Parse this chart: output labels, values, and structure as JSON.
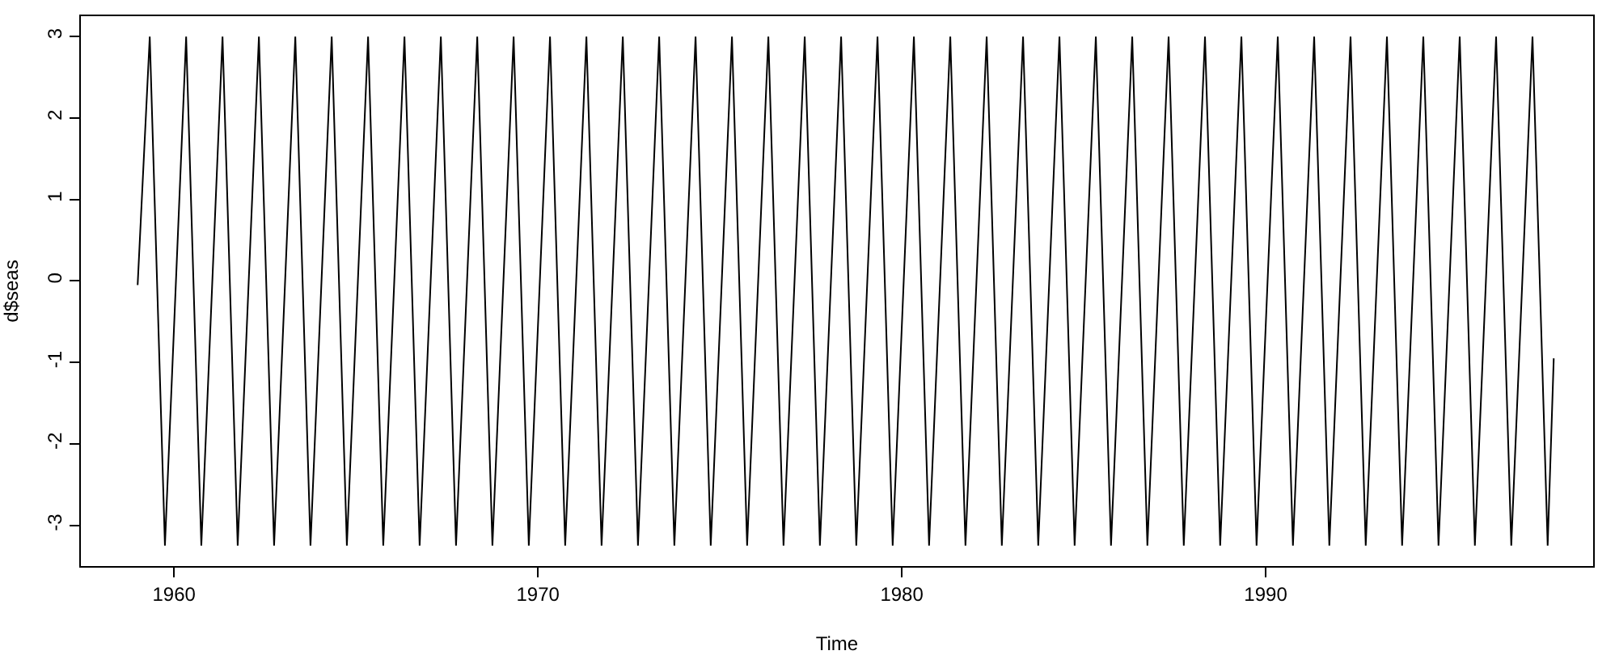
{
  "chart_data": {
    "type": "line",
    "xlabel": "Time",
    "ylabel": "d$seas",
    "x": [
      1959,
      1959.333,
      1959.75,
      1960.333,
      1960.75,
      1961.333,
      1961.75,
      1962.333,
      1962.75,
      1963.333,
      1963.75,
      1964.333,
      1964.75,
      1965.333,
      1965.75,
      1966.333,
      1966.75,
      1967.333,
      1967.75,
      1968.333,
      1968.75,
      1969.333,
      1969.75,
      1970.333,
      1970.75,
      1971.333,
      1971.75,
      1972.333,
      1972.75,
      1973.333,
      1973.75,
      1974.333,
      1974.75,
      1975.333,
      1975.75,
      1976.333,
      1976.75,
      1977.333,
      1977.75,
      1978.333,
      1978.75,
      1979.333,
      1979.75,
      1980.333,
      1980.75,
      1981.333,
      1981.75,
      1982.333,
      1982.75,
      1983.333,
      1983.75,
      1984.333,
      1984.75,
      1985.333,
      1985.75,
      1986.333,
      1986.75,
      1987.333,
      1987.75,
      1988.333,
      1988.75,
      1989.333,
      1989.75,
      1990.333,
      1990.75,
      1991.333,
      1991.75,
      1992.333,
      1992.75,
      1993.333,
      1993.75,
      1994.333,
      1994.75,
      1995.333,
      1995.75,
      1996.333,
      1996.75,
      1997.333,
      1997.75,
      1997.917
    ],
    "series": [
      {
        "color": "#000000",
        "values": [
          -0.05,
          3,
          -3.25,
          3,
          -3.25,
          3,
          -3.25,
          3,
          -3.25,
          3,
          -3.25,
          3,
          -3.25,
          3,
          -3.25,
          3,
          -3.25,
          3,
          -3.25,
          3,
          -3.25,
          3,
          -3.25,
          3,
          -3.25,
          3,
          -3.25,
          3,
          -3.25,
          3,
          -3.25,
          3,
          -3.25,
          3,
          -3.25,
          3,
          -3.25,
          3,
          -3.25,
          3,
          -3.25,
          3,
          -3.25,
          3,
          -3.25,
          3,
          -3.25,
          3,
          -3.25,
          3,
          -3.25,
          3,
          -3.25,
          3,
          -3.25,
          3,
          -3.25,
          3,
          -3.25,
          3,
          -3.25,
          3,
          -3.25,
          3,
          -3.25,
          3,
          -3.25,
          3,
          -3.25,
          3,
          -3.25,
          3,
          -3.25,
          3,
          -3.25,
          3,
          -3.25,
          3,
          -3.25,
          -0.95
        ]
      }
    ],
    "xlim": [
      1957.44,
      1999.0
    ],
    "ylim": [
      -3.5,
      3.25
    ],
    "xticks": [
      1960,
      1970,
      1980,
      1990
    ],
    "yticks": [
      -3,
      -2,
      -1,
      0,
      1,
      2,
      3
    ],
    "line_style": "solid",
    "marker": "none"
  }
}
